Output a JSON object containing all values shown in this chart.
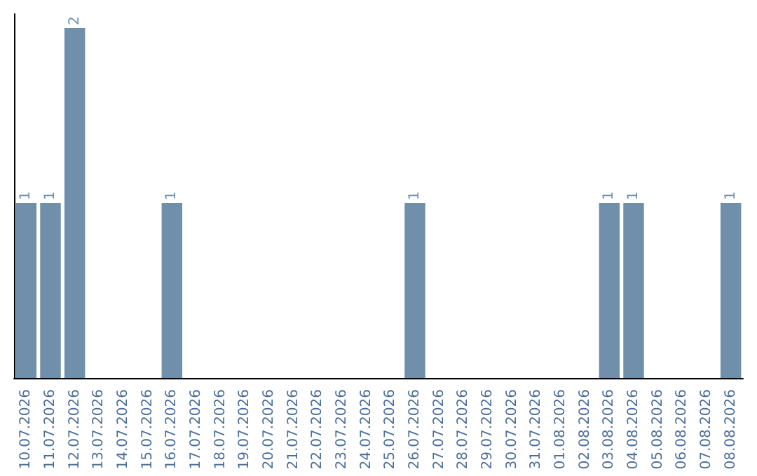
{
  "chart_data": {
    "type": "bar",
    "categories": [
      "10.07.2026",
      "11.07.2026",
      "12.07.2026",
      "13.07.2026",
      "14.07.2026",
      "15.07.2026",
      "16.07.2026",
      "17.07.2026",
      "18.07.2026",
      "19.07.2026",
      "20.07.2026",
      "21.07.2026",
      "22.07.2026",
      "23.07.2026",
      "24.07.2026",
      "25.07.2026",
      "26.07.2026",
      "27.07.2026",
      "28.07.2026",
      "29.07.2026",
      "30.07.2026",
      "31.07.2026",
      "01.08.2026",
      "02.08.2026",
      "03.08.2026",
      "04.08.2026",
      "05.08.2026",
      "06.08.2026",
      "07.08.2026",
      "08.08.2026"
    ],
    "values": [
      1,
      1,
      2,
      0,
      0,
      0,
      1,
      0,
      0,
      0,
      0,
      0,
      0,
      0,
      0,
      0,
      1,
      0,
      0,
      0,
      0,
      0,
      0,
      0,
      1,
      1,
      0,
      0,
      0,
      1
    ],
    "value_labels": [
      "1",
      "1",
      "2",
      null,
      null,
      null,
      "1",
      null,
      null,
      null,
      null,
      null,
      null,
      null,
      null,
      null,
      "1",
      null,
      null,
      null,
      null,
      null,
      null,
      null,
      "1",
      "1",
      null,
      null,
      null,
      "1"
    ],
    "color": "#6f8fab",
    "ylim": [
      0,
      2.08
    ],
    "tick_labels": "x"
  }
}
